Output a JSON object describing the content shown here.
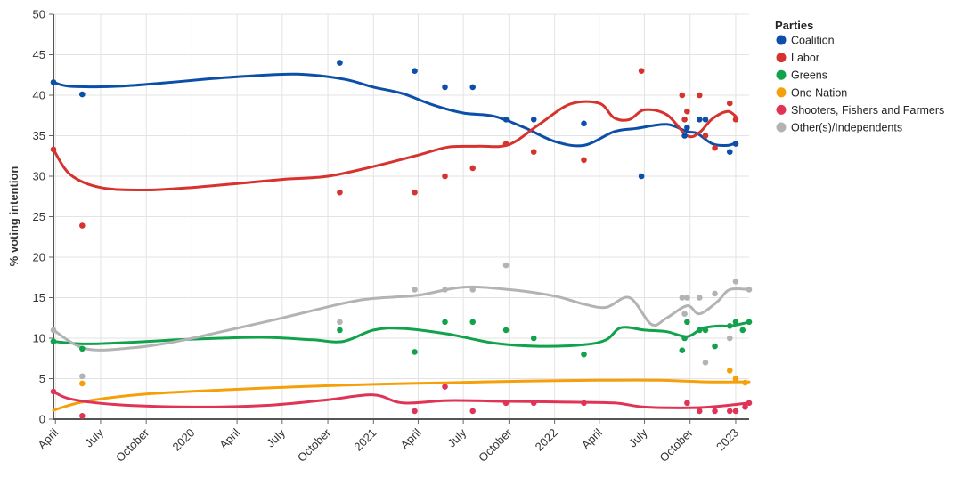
{
  "chart_data": {
    "type": "scatter",
    "title": "",
    "ylabel": "% voting intention",
    "xlabel": "",
    "ylim": [
      0,
      50
    ],
    "yticks": [
      0,
      5,
      10,
      15,
      20,
      25,
      30,
      35,
      40,
      45,
      50
    ],
    "x_domain": [
      "2019-03-28",
      "2023-01-28"
    ],
    "xticks": [
      {
        "date": "2019-04-01",
        "label": "April"
      },
      {
        "date": "2019-07-01",
        "label": "July"
      },
      {
        "date": "2019-10-01",
        "label": "October"
      },
      {
        "date": "2020-01-01",
        "label": "2020"
      },
      {
        "date": "2020-04-01",
        "label": "April"
      },
      {
        "date": "2020-07-01",
        "label": "July"
      },
      {
        "date": "2020-10-01",
        "label": "October"
      },
      {
        "date": "2021-01-01",
        "label": "2021"
      },
      {
        "date": "2021-04-01",
        "label": "April"
      },
      {
        "date": "2021-07-01",
        "label": "July"
      },
      {
        "date": "2021-10-01",
        "label": "October"
      },
      {
        "date": "2022-01-01",
        "label": "2022"
      },
      {
        "date": "2022-04-01",
        "label": "April"
      },
      {
        "date": "2022-07-01",
        "label": "July"
      },
      {
        "date": "2022-10-01",
        "label": "October"
      },
      {
        "date": "2023-01-01",
        "label": "2023"
      }
    ],
    "grid": true,
    "legend": {
      "title": "Parties",
      "position": "right"
    },
    "series": [
      {
        "name": "Coalition",
        "color": "#0b4fa8",
        "points": [
          [
            "2019-03-28",
            41.6
          ],
          [
            "2019-05-25",
            40.1
          ],
          [
            "2020-10-25",
            44
          ],
          [
            "2021-03-25",
            43
          ],
          [
            "2021-05-25",
            41
          ],
          [
            "2021-07-20",
            41
          ],
          [
            "2021-09-25",
            37
          ],
          [
            "2021-11-20",
            37
          ],
          [
            "2022-03-01",
            36.5
          ],
          [
            "2022-06-25",
            30
          ],
          [
            "2022-09-20",
            35
          ],
          [
            "2022-09-25",
            36
          ],
          [
            "2022-10-20",
            37
          ],
          [
            "2022-11-01",
            37
          ],
          [
            "2022-12-20",
            33
          ],
          [
            "2023-01-01",
            34
          ]
        ],
        "trend": [
          [
            "2019-03-28",
            41.6
          ],
          [
            "2019-05-01",
            41.1
          ],
          [
            "2019-08-01",
            41.1
          ],
          [
            "2019-11-01",
            41.5
          ],
          [
            "2020-02-01",
            42
          ],
          [
            "2020-05-01",
            42.4
          ],
          [
            "2020-08-01",
            42.6
          ],
          [
            "2020-11-01",
            42
          ],
          [
            "2021-01-01",
            41
          ],
          [
            "2021-03-01",
            40.2
          ],
          [
            "2021-05-01",
            38.8
          ],
          [
            "2021-07-01",
            37.8
          ],
          [
            "2021-09-01",
            37.4
          ],
          [
            "2021-11-01",
            36
          ],
          [
            "2022-01-01",
            34.3
          ],
          [
            "2022-03-01",
            33.8
          ],
          [
            "2022-05-01",
            35.5
          ],
          [
            "2022-06-15",
            35.9
          ],
          [
            "2022-08-15",
            36.4
          ],
          [
            "2022-09-25",
            35.5
          ],
          [
            "2022-10-15",
            35.3
          ],
          [
            "2022-11-15",
            34
          ],
          [
            "2022-12-15",
            33.8
          ],
          [
            "2023-01-01",
            34.1
          ]
        ]
      },
      {
        "name": "Labor",
        "color": "#d6332e",
        "points": [
          [
            "2019-03-28",
            33.3
          ],
          [
            "2019-05-25",
            23.9
          ],
          [
            "2020-10-25",
            28
          ],
          [
            "2021-03-25",
            28
          ],
          [
            "2021-05-25",
            30
          ],
          [
            "2021-07-20",
            31
          ],
          [
            "2021-09-25",
            34
          ],
          [
            "2021-11-20",
            33
          ],
          [
            "2022-03-01",
            32
          ],
          [
            "2022-06-25",
            43
          ],
          [
            "2022-09-15",
            40
          ],
          [
            "2022-09-20",
            37
          ],
          [
            "2022-09-25",
            38
          ],
          [
            "2022-10-20",
            40
          ],
          [
            "2022-11-01",
            35
          ],
          [
            "2022-11-20",
            33.5
          ],
          [
            "2022-12-20",
            39
          ],
          [
            "2023-01-01",
            37
          ]
        ],
        "trend": [
          [
            "2019-03-28",
            33.3
          ],
          [
            "2019-05-01",
            30.2
          ],
          [
            "2019-07-01",
            28.6
          ],
          [
            "2019-10-01",
            28.3
          ],
          [
            "2020-01-01",
            28.6
          ],
          [
            "2020-04-01",
            29.1
          ],
          [
            "2020-07-01",
            29.6
          ],
          [
            "2020-10-01",
            30
          ],
          [
            "2021-01-01",
            31.2
          ],
          [
            "2021-04-01",
            32.6
          ],
          [
            "2021-06-01",
            33.6
          ],
          [
            "2021-08-01",
            33.7
          ],
          [
            "2021-10-01",
            33.9
          ],
          [
            "2021-12-01",
            36.4
          ],
          [
            "2022-02-01",
            38.9
          ],
          [
            "2022-04-01",
            39
          ],
          [
            "2022-05-01",
            37.2
          ],
          [
            "2022-06-01",
            37
          ],
          [
            "2022-07-01",
            38.2
          ],
          [
            "2022-08-15",
            37.6
          ],
          [
            "2022-09-25",
            35
          ],
          [
            "2022-10-20",
            35.4
          ],
          [
            "2022-11-15",
            37.1
          ],
          [
            "2022-12-15",
            38
          ],
          [
            "2023-01-01",
            37.4
          ]
        ]
      },
      {
        "name": "Greens",
        "color": "#12a24c",
        "points": [
          [
            "2019-03-28",
            9.6
          ],
          [
            "2019-05-25",
            8.7
          ],
          [
            "2020-10-25",
            11
          ],
          [
            "2021-03-25",
            8.3
          ],
          [
            "2021-05-25",
            12
          ],
          [
            "2021-07-20",
            12
          ],
          [
            "2021-09-25",
            11
          ],
          [
            "2021-11-20",
            10
          ],
          [
            "2022-03-01",
            8
          ],
          [
            "2022-09-15",
            8.5
          ],
          [
            "2022-09-20",
            10
          ],
          [
            "2022-09-25",
            12
          ],
          [
            "2022-10-20",
            11
          ],
          [
            "2022-11-01",
            11
          ],
          [
            "2022-11-20",
            9
          ],
          [
            "2022-12-20",
            11.5
          ],
          [
            "2023-01-01",
            12
          ],
          [
            "2023-01-15",
            11
          ],
          [
            "2023-01-28",
            12
          ]
        ],
        "trend": [
          [
            "2019-03-28",
            9.6
          ],
          [
            "2019-06-01",
            9.3
          ],
          [
            "2019-09-01",
            9.5
          ],
          [
            "2019-12-01",
            9.8
          ],
          [
            "2020-03-01",
            10
          ],
          [
            "2020-06-01",
            10.1
          ],
          [
            "2020-09-01",
            9.8
          ],
          [
            "2020-11-01",
            9.6
          ],
          [
            "2021-01-01",
            11
          ],
          [
            "2021-03-01",
            11.2
          ],
          [
            "2021-06-01",
            10.5
          ],
          [
            "2021-09-01",
            9.4
          ],
          [
            "2021-12-01",
            9
          ],
          [
            "2022-03-01",
            9.2
          ],
          [
            "2022-04-15",
            9.8
          ],
          [
            "2022-05-15",
            11.3
          ],
          [
            "2022-07-01",
            11
          ],
          [
            "2022-08-15",
            10.8
          ],
          [
            "2022-09-25",
            10.2
          ],
          [
            "2022-10-25",
            11.2
          ],
          [
            "2022-11-25",
            11.5
          ],
          [
            "2022-12-20",
            11.5
          ],
          [
            "2023-01-15",
            11.8
          ],
          [
            "2023-01-28",
            12
          ]
        ]
      },
      {
        "name": "One Nation",
        "color": "#f5a00a",
        "points": [
          [
            "2019-05-25",
            4.4
          ],
          [
            "2022-12-20",
            6
          ],
          [
            "2023-01-01",
            5
          ],
          [
            "2023-01-20",
            4.5
          ]
        ],
        "trend": [
          [
            "2019-03-28",
            1.1
          ],
          [
            "2019-06-01",
            2.2
          ],
          [
            "2019-10-01",
            3.1
          ],
          [
            "2020-03-01",
            3.6
          ],
          [
            "2020-08-01",
            4
          ],
          [
            "2021-01-01",
            4.3
          ],
          [
            "2021-06-01",
            4.5
          ],
          [
            "2021-11-01",
            4.7
          ],
          [
            "2022-04-01",
            4.8
          ],
          [
            "2022-08-01",
            4.8
          ],
          [
            "2022-11-01",
            4.6
          ],
          [
            "2023-01-28",
            4.6
          ]
        ]
      },
      {
        "name": "Shooters, Fishers and Farmers",
        "color": "#e03457",
        "points": [
          [
            "2019-03-28",
            3.4
          ],
          [
            "2019-05-25",
            0.4
          ],
          [
            "2021-03-25",
            1
          ],
          [
            "2021-05-25",
            4
          ],
          [
            "2021-07-20",
            1
          ],
          [
            "2021-09-25",
            2
          ],
          [
            "2021-11-20",
            2
          ],
          [
            "2022-03-01",
            2
          ],
          [
            "2022-09-25",
            2
          ],
          [
            "2022-10-20",
            1
          ],
          [
            "2022-11-20",
            1
          ],
          [
            "2022-12-20",
            1
          ],
          [
            "2023-01-01",
            1
          ],
          [
            "2023-01-20",
            1.5
          ],
          [
            "2023-01-28",
            2
          ]
        ],
        "trend": [
          [
            "2019-03-28",
            3.4
          ],
          [
            "2019-05-01",
            2.5
          ],
          [
            "2019-08-01",
            1.8
          ],
          [
            "2020-01-01",
            1.5
          ],
          [
            "2020-06-01",
            1.7
          ],
          [
            "2020-10-01",
            2.4
          ],
          [
            "2021-01-01",
            3
          ],
          [
            "2021-03-01",
            2
          ],
          [
            "2021-06-01",
            2.3
          ],
          [
            "2021-10-01",
            2.2
          ],
          [
            "2022-02-01",
            2.1
          ],
          [
            "2022-05-01",
            2
          ],
          [
            "2022-07-01",
            1.5
          ],
          [
            "2022-10-01",
            1.4
          ],
          [
            "2022-12-01",
            1.6
          ],
          [
            "2023-01-28",
            2
          ]
        ]
      },
      {
        "name": "Other(s)/Independents",
        "color": "#b3b3b3",
        "points": [
          [
            "2019-03-28",
            11
          ],
          [
            "2019-05-25",
            5.3
          ],
          [
            "2020-10-25",
            12
          ],
          [
            "2021-03-25",
            16
          ],
          [
            "2021-05-25",
            16
          ],
          [
            "2021-07-20",
            16
          ],
          [
            "2021-09-25",
            19
          ],
          [
            "2022-09-15",
            15
          ],
          [
            "2022-09-20",
            13
          ],
          [
            "2022-09-25",
            15
          ],
          [
            "2022-10-20",
            15
          ],
          [
            "2022-11-01",
            7
          ],
          [
            "2022-11-20",
            15.5
          ],
          [
            "2022-12-20",
            10
          ],
          [
            "2023-01-01",
            17
          ],
          [
            "2023-01-28",
            16
          ]
        ],
        "trend": [
          [
            "2019-03-28",
            11
          ],
          [
            "2019-06-01",
            8.7
          ],
          [
            "2019-09-01",
            8.8
          ],
          [
            "2019-12-01",
            9.6
          ],
          [
            "2020-03-01",
            10.8
          ],
          [
            "2020-07-01",
            12.5
          ],
          [
            "2020-11-01",
            14.3
          ],
          [
            "2021-01-01",
            14.9
          ],
          [
            "2021-04-01",
            15.3
          ],
          [
            "2021-07-01",
            16.3
          ],
          [
            "2021-10-01",
            16
          ],
          [
            "2022-01-01",
            15.2
          ],
          [
            "2022-03-01",
            14.2
          ],
          [
            "2022-04-15",
            13.8
          ],
          [
            "2022-06-01",
            15
          ],
          [
            "2022-07-15",
            11.7
          ],
          [
            "2022-08-15",
            12.5
          ],
          [
            "2022-09-25",
            14
          ],
          [
            "2022-10-20",
            13
          ],
          [
            "2022-11-25",
            14.5
          ],
          [
            "2022-12-20",
            16
          ],
          [
            "2023-01-28",
            16
          ]
        ]
      }
    ]
  }
}
